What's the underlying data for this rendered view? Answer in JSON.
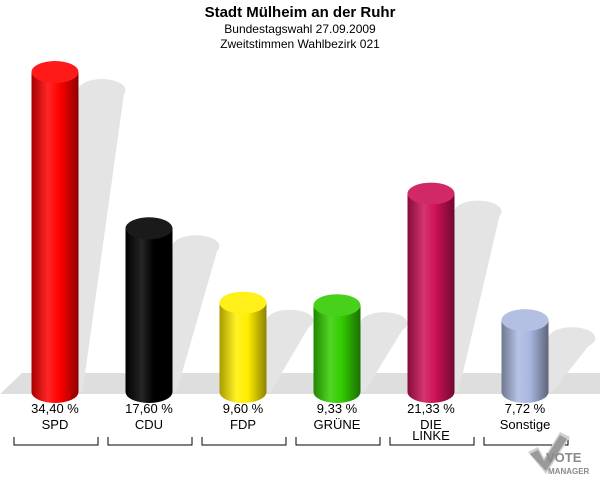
{
  "header": {
    "title": "Stadt Mülheim an der Ruhr",
    "subtitle1": "Bundestagswahl 27.09.2009",
    "subtitle2": "Zweitstimmen Wahlbezirk 021"
  },
  "chart_data": {
    "type": "bar",
    "categories": [
      "SPD",
      "CDU",
      "FDP",
      "GRÜNE",
      "DIE LINKE",
      "Sonstige"
    ],
    "value_labels": [
      "34,40 %",
      "17,60 %",
      "9,60 %",
      "9,33 %",
      "21,33 %",
      "7,72 %"
    ],
    "values": [
      34.4,
      17.6,
      9.6,
      9.33,
      21.33,
      7.72
    ],
    "unit": "%",
    "colors": [
      "#ff0000",
      "#000000",
      "#ffee00",
      "#33cc00",
      "#cc1155",
      "#aab8e0"
    ],
    "ylim": [
      0,
      36
    ],
    "grid": false,
    "legend": "none"
  },
  "logo": {
    "line1": "VOTE",
    "line2": "MANAGER"
  }
}
